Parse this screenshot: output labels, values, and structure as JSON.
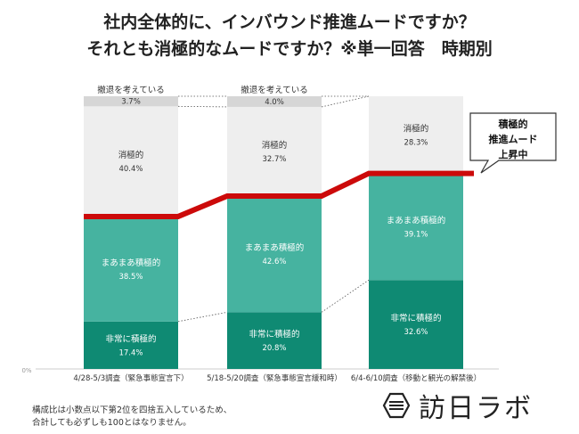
{
  "title_lines": [
    "社内全体的に、インバウンド推進ムードですか？",
    "それとも消極的なムードですか？※単一回答　時期別"
  ],
  "chart_data": {
    "type": "bar",
    "stacked": true,
    "percent": true,
    "categories": [
      "4/28-5/3調査（緊急事態宣言下）",
      "5/18-5/20調査（緊急事態宣言緩和時）",
      "6/4-6/10調査（移動と観光の解禁後）"
    ],
    "series": [
      {
        "name": "非常に積極的",
        "values": [
          17.4,
          20.8,
          32.6
        ],
        "color": "#0f8a73"
      },
      {
        "name": "まあまあ積極的",
        "values": [
          38.5,
          42.6,
          39.1
        ],
        "color": "#46b3a0"
      },
      {
        "name": "消極的",
        "values": [
          40.4,
          32.7,
          28.3
        ],
        "color": "#eeeeee"
      },
      {
        "name": "撤退を考えている",
        "values": [
          3.7,
          4.0,
          null
        ],
        "color": "#d6d6d6"
      }
    ],
    "value_labels": [
      {
        "series": "非常に積極的",
        "labels": [
          "17.4%",
          "20.8%",
          "32.6%"
        ]
      },
      {
        "series": "まあまあ積極的",
        "labels": [
          "38.5%",
          "42.6%",
          "39.1%"
        ]
      },
      {
        "series": "消極的",
        "labels": [
          "40.4%",
          "32.7%",
          "28.3%"
        ]
      },
      {
        "series": "撤退を考えている",
        "labels": [
          "3.7%",
          "4.0%",
          ""
        ]
      }
    ],
    "withdraw_header": [
      "撤退を考えている",
      "撤退を考えている",
      ""
    ],
    "y_tick_zero": "0%",
    "ylim": [
      0,
      100
    ],
    "highlight_line": {
      "color": "#cc0a0a"
    },
    "callout": [
      "積極的",
      "推進ムード",
      "上昇中"
    ]
  },
  "notes": [
    "構成比は小数点以下第2位を四捨五入しているため、",
    "合計しても必ずしも100とはなりません。"
  ],
  "logo": {
    "text": "訪日ラボ"
  }
}
